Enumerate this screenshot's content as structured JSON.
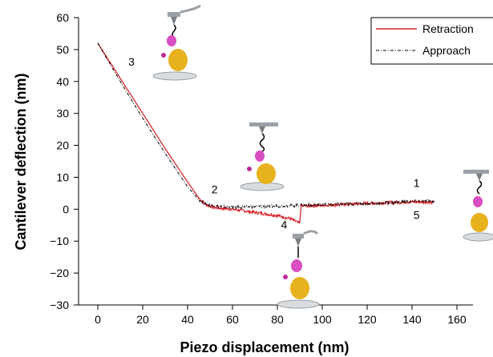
{
  "chart_data": {
    "type": "line",
    "xlabel": "Piezo displacement (nm)",
    "ylabel": "Cantilever deflection (nm)",
    "xlim": [
      -10,
      160
    ],
    "ylim": [
      -30,
      60
    ],
    "xticks": [
      0,
      20,
      40,
      60,
      80,
      100,
      120,
      140,
      160
    ],
    "yticks": [
      -30,
      -20,
      -10,
      0,
      10,
      20,
      30,
      40,
      50,
      60
    ],
    "xtick_labels": [
      "0",
      "20",
      "40",
      "60",
      "80",
      "100",
      "120",
      "140",
      "160"
    ],
    "ytick_labels": [
      "−30",
      "−20",
      "−10",
      "0",
      "10",
      "20",
      "30",
      "40",
      "50",
      "60"
    ],
    "grid": false,
    "legend_position": "top-right",
    "series": [
      {
        "name": "Retraction",
        "color": "#d6262d",
        "style": "solid",
        "points": [
          [
            0,
            52
          ],
          [
            10,
            41
          ],
          [
            20,
            30
          ],
          [
            30,
            19
          ],
          [
            40,
            8.5
          ],
          [
            45,
            3.5
          ],
          [
            48,
            1.5
          ],
          [
            52,
            0.5
          ],
          [
            60,
            0
          ],
          [
            70,
            -1
          ],
          [
            80,
            -2
          ],
          [
            86,
            -3
          ],
          [
            90,
            -4.5
          ],
          [
            90.5,
            1
          ],
          [
            100,
            1.2
          ],
          [
            110,
            1.5
          ],
          [
            120,
            1.8
          ],
          [
            130,
            2.1
          ],
          [
            140,
            2.3
          ],
          [
            150,
            2.2
          ]
        ]
      },
      {
        "name": "Approach",
        "color": "#000000",
        "style": "dash-dot",
        "points": [
          [
            0,
            52
          ],
          [
            10,
            40
          ],
          [
            20,
            28.5
          ],
          [
            30,
            17.5
          ],
          [
            40,
            7
          ],
          [
            45,
            3
          ],
          [
            48,
            1.5
          ],
          [
            52,
            1
          ],
          [
            60,
            0.6
          ],
          [
            70,
            0.8
          ],
          [
            80,
            1
          ],
          [
            90,
            1.2
          ],
          [
            100,
            1.4
          ],
          [
            110,
            1.6
          ],
          [
            120,
            1.8
          ],
          [
            130,
            2
          ],
          [
            140,
            2.4
          ],
          [
            150,
            2.6
          ]
        ]
      }
    ],
    "annotations": [
      {
        "label": "3",
        "x": 15,
        "y": 45
      },
      {
        "label": "2",
        "x": 52,
        "y": 5
      },
      {
        "label": "1",
        "x": 142,
        "y": 7
      },
      {
        "label": "4",
        "x": 83,
        "y": -6
      },
      {
        "label": "5",
        "x": 142,
        "y": -3
      }
    ]
  }
}
